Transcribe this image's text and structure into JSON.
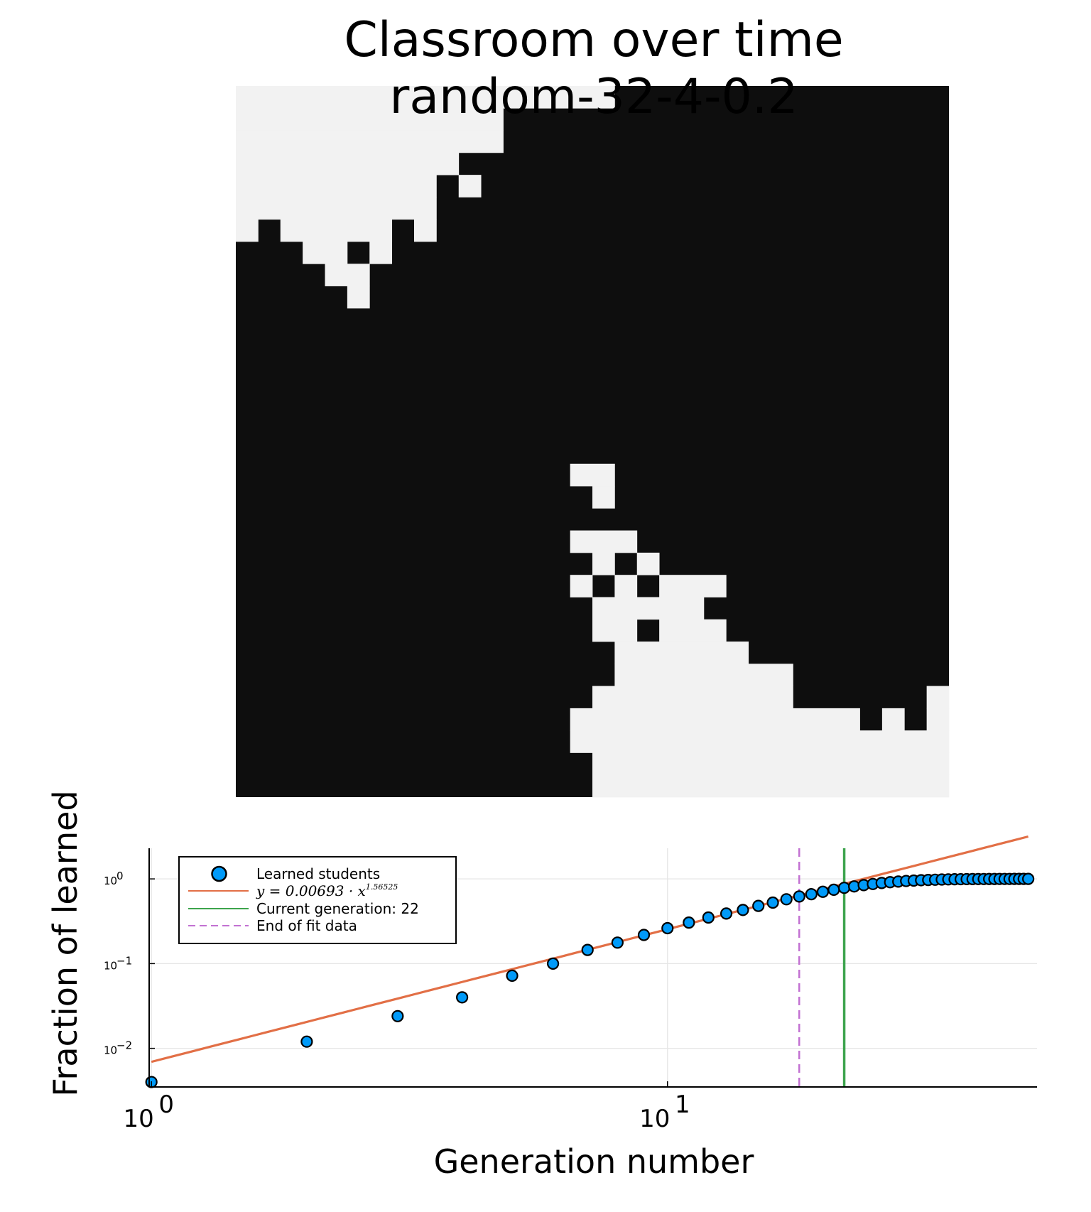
{
  "title_line1": "Classroom over time",
  "title_line2": "random-32-4-0.2",
  "colors": {
    "grid_dark": "#0e0e0e",
    "grid_light": "#f2f2f2",
    "points": "#009af9",
    "fit": "#e26f46",
    "current": "#3da44d",
    "end_fit": "#c271d2"
  },
  "grid": {
    "rows": 32,
    "cols": 32,
    "light_cells_by_row": [
      [
        [
          0,
          16
        ]
      ],
      [
        [
          0,
          11
        ]
      ],
      [
        [
          0,
          11
        ]
      ],
      [
        [
          0,
          9
        ]
      ],
      [
        [
          0,
          8
        ],
        [
          10,
          10
        ]
      ],
      [
        [
          0,
          8
        ]
      ],
      [
        [
          0,
          0
        ],
        [
          2,
          6
        ],
        [
          8,
          8
        ]
      ],
      [
        [
          3,
          4
        ],
        [
          6,
          6
        ]
      ],
      [
        [
          4,
          5
        ]
      ],
      [
        [
          5,
          5
        ]
      ],
      [],
      [],
      [],
      [],
      [],
      [],
      [],
      [
        [
          15,
          16
        ]
      ],
      [
        [
          16,
          16
        ]
      ],
      [],
      [
        [
          15,
          17
        ]
      ],
      [
        [
          16,
          16
        ],
        [
          18,
          18
        ]
      ],
      [
        [
          15,
          15
        ],
        [
          17,
          17
        ],
        [
          19,
          21
        ]
      ],
      [
        [
          16,
          20
        ]
      ],
      [
        [
          16,
          17
        ],
        [
          19,
          21
        ]
      ],
      [
        [
          17,
          22
        ]
      ],
      [
        [
          17,
          24
        ]
      ],
      [
        [
          16,
          24
        ],
        [
          31,
          31
        ]
      ],
      [
        [
          15,
          27
        ],
        [
          29,
          29
        ],
        [
          31,
          31
        ]
      ],
      [
        [
          15,
          31
        ]
      ],
      [
        [
          16,
          31
        ]
      ],
      [
        [
          16,
          31
        ]
      ]
    ]
  },
  "chart_data": {
    "type": "scatter",
    "xlabel": "Generation number",
    "ylabel": "Fraction of learned",
    "x_scale": "log10",
    "y_scale": "log10",
    "xlim": [
      0.99,
      52
    ],
    "ylim": [
      0.0035,
      2.3
    ],
    "x_ticks": [
      {
        "base": "10",
        "exp": "0",
        "value": 1
      },
      {
        "base": "10",
        "exp": "1",
        "value": 10
      }
    ],
    "y_ticks": [
      {
        "base": "10",
        "exp": "0",
        "value": 1
      },
      {
        "base": "10",
        "exp": "−1",
        "value": 0.1
      },
      {
        "base": "10",
        "exp": "−2",
        "value": 0.01
      }
    ],
    "grid": true,
    "legend_position": "top-left",
    "series": [
      {
        "name": "Learned students",
        "kind": "scatter",
        "x": [
          1,
          2,
          3,
          4,
          5,
          6,
          7,
          8,
          9,
          10,
          11,
          12,
          13,
          14,
          15,
          16,
          17,
          18,
          19,
          20,
          21,
          22,
          23,
          24,
          25,
          26,
          27,
          28,
          29,
          30,
          31,
          32,
          33,
          34,
          35,
          36,
          37,
          38,
          39,
          40,
          41,
          42,
          43,
          44,
          45,
          46,
          47,
          48,
          49,
          50
        ],
        "y": [
          0.004,
          0.012,
          0.024,
          0.04,
          0.072,
          0.1,
          0.145,
          0.177,
          0.218,
          0.262,
          0.305,
          0.35,
          0.39,
          0.43,
          0.48,
          0.525,
          0.575,
          0.62,
          0.66,
          0.705,
          0.745,
          0.785,
          0.815,
          0.845,
          0.87,
          0.895,
          0.915,
          0.93,
          0.945,
          0.955,
          0.965,
          0.972,
          0.978,
          0.983,
          0.987,
          0.99,
          0.992,
          0.994,
          0.995,
          0.996,
          0.997,
          0.998,
          0.998,
          0.999,
          0.999,
          0.999,
          1.0,
          1.0,
          1.0,
          1.0
        ]
      },
      {
        "name": "y = 0.00693 · x^1.56525",
        "kind": "fit_line",
        "coefficient": 0.00693,
        "exponent": 1.56525,
        "x_range": [
          1,
          50
        ]
      },
      {
        "name": "Current generation: 22",
        "kind": "vline",
        "x": 22
      },
      {
        "name": "End of fit data",
        "kind": "vline_dashed",
        "x": 18
      }
    ],
    "legend": [
      {
        "label": "Learned students",
        "kind": "point"
      },
      {
        "label": "y = 0.00693 · x",
        "sup": "1.56525",
        "kind": "fit"
      },
      {
        "label": "Current generation: 22",
        "kind": "current"
      },
      {
        "label": "End of fit data",
        "kind": "end_fit"
      }
    ]
  }
}
